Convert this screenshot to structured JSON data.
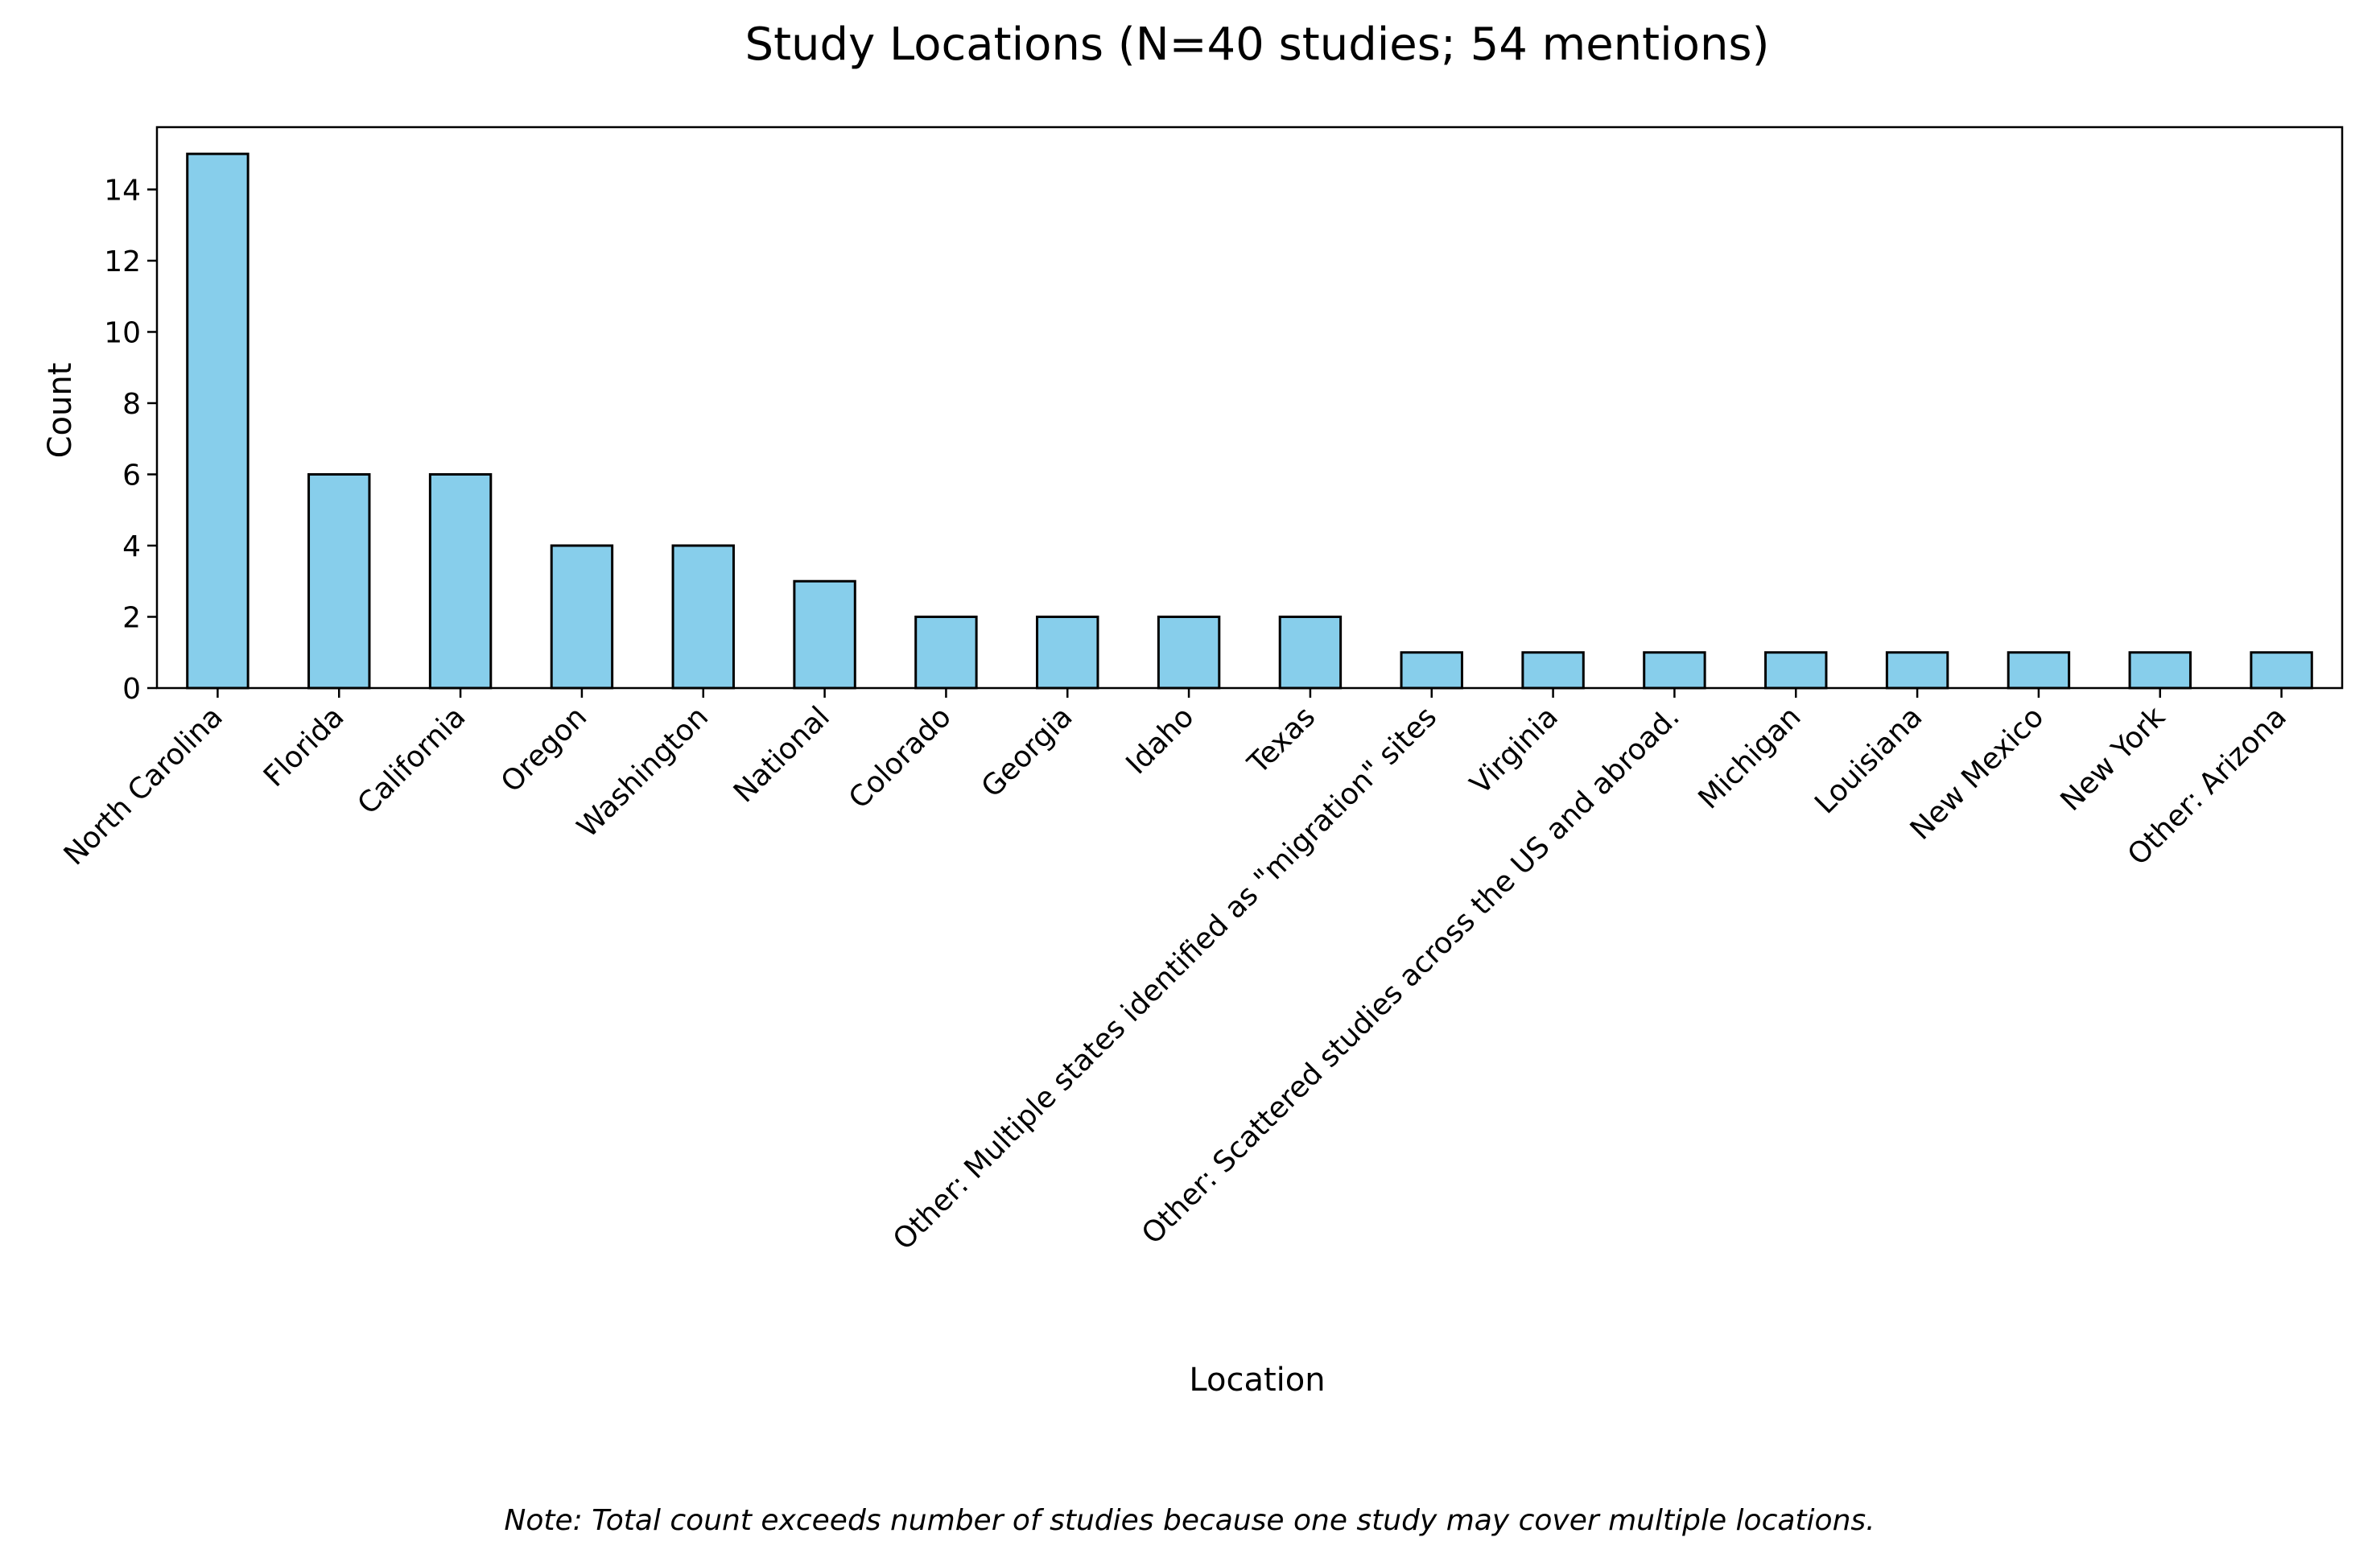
{
  "chart_data": {
    "type": "bar",
    "title": "Study Locations (N=40 studies; 54 mentions)",
    "xlabel": "Location",
    "ylabel": "Count",
    "categories": [
      "North Carolina",
      "Florida",
      "California",
      "Oregon",
      "Washington",
      "National",
      "Colorado",
      "Georgia",
      "Idaho",
      "Texas",
      "Other: Multiple states identified as \"migration\" sites",
      "Virginia",
      "Other: Scattered studies across the US and abroad.",
      "Michigan",
      "Louisiana",
      "New Mexico",
      "New York",
      "Other: Arizona"
    ],
    "values": [
      15,
      6,
      6,
      4,
      4,
      3,
      2,
      2,
      2,
      2,
      1,
      1,
      1,
      1,
      1,
      1,
      1,
      1
    ],
    "ylim": [
      0,
      15.75
    ],
    "yticks": [
      0,
      2,
      4,
      6,
      8,
      10,
      12,
      14
    ],
    "bar_color": "#87CEEB",
    "edge_color": "#000000",
    "grid": false,
    "note": "Note: Total count exceeds number of studies because one study may cover multiple locations."
  }
}
